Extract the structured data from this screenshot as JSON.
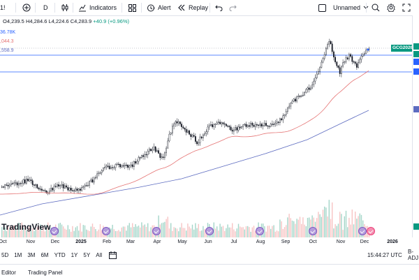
{
  "toolbar": {
    "symbol_fragment": "1!",
    "interval": "D",
    "indicators_label": "Indicators",
    "alert_label": "Alert",
    "replay_label": "Replay",
    "layout_name": "Unnamed"
  },
  "legend": {
    "ohlc": "O4,239.5  H4,284.6  L4,224.6  C4,283.9",
    "change": "+40.9 (+0.96%)",
    "ind1": "36.78K",
    "ind2": ",044.3",
    "ind3": ",558.9"
  },
  "symbol_tag": "GCG2026",
  "x_labels": [
    "Oct",
    "Nov",
    "Dec",
    "2025",
    "Feb",
    "Mar",
    "Apr",
    "May",
    "Jun",
    "Jul",
    "Aug",
    "Sep",
    "Oct",
    "Nov",
    "Dec",
    "2026"
  ],
  "logo_text": "TradingView",
  "ranges": [
    "5D",
    "1M",
    "3M",
    "6M",
    "YTD",
    "1Y",
    "5Y",
    "All"
  ],
  "time": "15:44:27 UTC",
  "adj": "B-ADJ",
  "bottom_tabs": [
    "Editor",
    "Trading Panel"
  ],
  "colors": {
    "up": "#089981",
    "down": "#131722",
    "ma_fast": "#e57373",
    "ma_slow": "#5c6bc0",
    "accent": "#2962ff"
  }
}
